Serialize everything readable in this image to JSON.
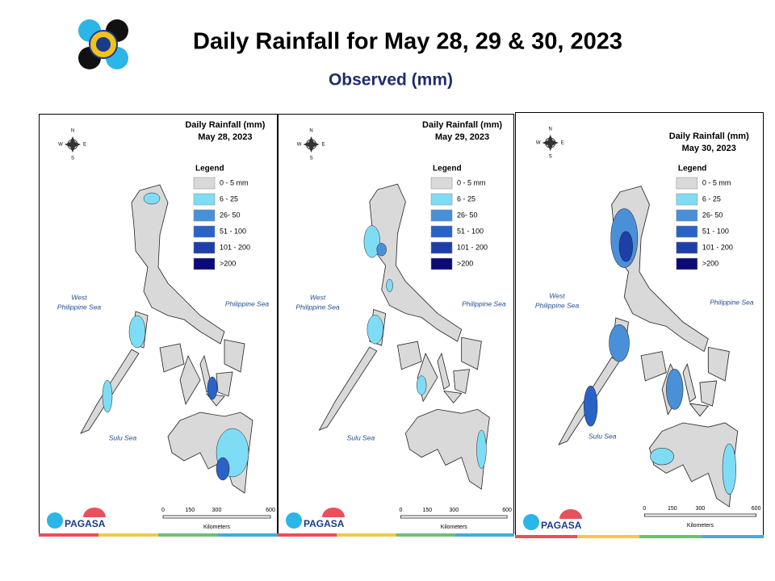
{
  "header": {
    "title": "Daily Rainfall for May 28, 29 & 30, 2023",
    "subtitle": "Observed (mm)"
  },
  "panels": [
    {
      "title": "Daily Rainfall (mm)",
      "date": "May 28, 2023"
    },
    {
      "title": "Daily Rainfall (mm)",
      "date": "May 29, 2023"
    },
    {
      "title": "Daily Rainfall (mm)",
      "date": "May 30, 2023"
    }
  ],
  "legend": {
    "title": "Legend",
    "items": [
      {
        "label": "0 - 5 mm",
        "color": "#d9d9d9"
      },
      {
        "label": "6 - 25",
        "color": "#7fdcf5"
      },
      {
        "label": "26- 50",
        "color": "#4a90d9"
      },
      {
        "label": "51 - 100",
        "color": "#2a62c8"
      },
      {
        "label": "101 - 200",
        "color": "#1f3fa8"
      },
      {
        "label": ">200",
        "color": "#0a0a78"
      }
    ]
  },
  "compass": {
    "n": "N",
    "e": "E",
    "s": "S",
    "w": "W"
  },
  "seas": {
    "west_line1": "West",
    "west_line2": "Philippine Sea",
    "east": "Philippine Sea",
    "south": "Sulu Sea"
  },
  "scale": {
    "ticks": [
      "0",
      "150",
      "300",
      "600"
    ],
    "unit": "Kilometers"
  },
  "logo": "PAGASA"
}
